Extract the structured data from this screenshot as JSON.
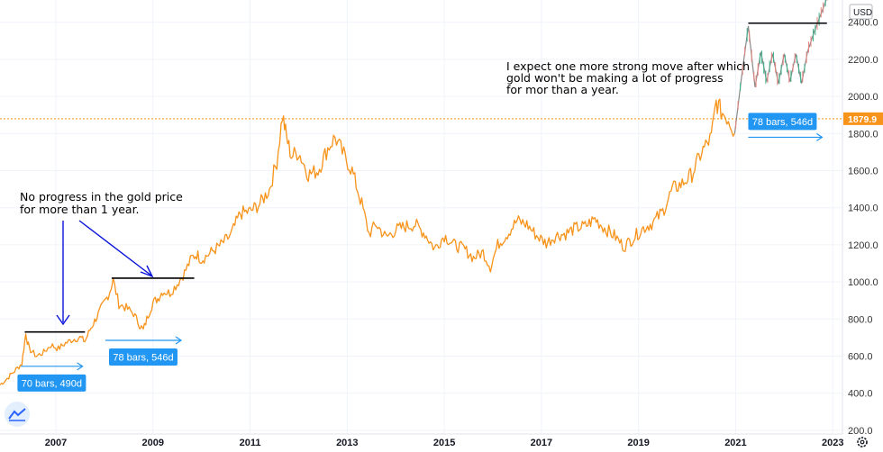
{
  "chart_data": {
    "type": "line",
    "title": "",
    "currency": "USD",
    "current_price_label": "1879.9",
    "current_price": 1879.9,
    "ylim": [
      180,
      2520
    ],
    "xlim": [
      2005.85,
      2023.2
    ],
    "y_ticks": [
      {
        "value": 2400,
        "label": "2400.0"
      },
      {
        "value": 2200,
        "label": "2200.0"
      },
      {
        "value": 2000,
        "label": "2000.0"
      },
      {
        "value": 1800,
        "label": "1800.0"
      },
      {
        "value": 1600,
        "label": "1600.0"
      },
      {
        "value": 1400,
        "label": "1400.0"
      },
      {
        "value": 1200,
        "label": "1200.0"
      },
      {
        "value": 1000,
        "label": "1000.0"
      },
      {
        "value": 800,
        "label": "800.0"
      },
      {
        "value": 600,
        "label": "600.0"
      },
      {
        "value": 400,
        "label": "400.0"
      },
      {
        "value": 200,
        "label": "200.0"
      }
    ],
    "x_ticks": [
      {
        "value": 2007,
        "label": "2007"
      },
      {
        "value": 2009,
        "label": "2009"
      },
      {
        "value": 2011,
        "label": "2011"
      },
      {
        "value": 2013,
        "label": "2013"
      },
      {
        "value": 2015,
        "label": "2015"
      },
      {
        "value": 2017,
        "label": "2017"
      },
      {
        "value": 2019,
        "label": "2019"
      },
      {
        "value": 2021,
        "label": "2021"
      },
      {
        "value": 2023,
        "label": "2023"
      }
    ],
    "series": [
      {
        "color": "#f7931a",
        "x": [
          2005.85,
          2006.0,
          2006.15,
          2006.3,
          2006.38,
          2006.45,
          2006.6,
          2006.75,
          2006.9,
          2007.05,
          2007.2,
          2007.35,
          2007.5,
          2007.6,
          2007.7,
          2007.8,
          2007.9,
          2008.0,
          2008.1,
          2008.18,
          2008.3,
          2008.45,
          2008.6,
          2008.72,
          2008.8,
          2008.9,
          2009.0,
          2009.1,
          2009.2,
          2009.35,
          2009.5,
          2009.65,
          2009.8,
          2009.9,
          2010.0,
          2010.2,
          2010.4,
          2010.6,
          2010.8,
          2011.0,
          2011.2,
          2011.4,
          2011.55,
          2011.67,
          2011.75,
          2011.85,
          2012.0,
          2012.2,
          2012.4,
          2012.6,
          2012.75,
          2012.9,
          2013.1,
          2013.3,
          2013.45,
          2013.6,
          2013.8,
          2014.0,
          2014.2,
          2014.4,
          2014.6,
          2014.8,
          2015.0,
          2015.2,
          2015.4,
          2015.6,
          2015.8,
          2015.95,
          2016.1,
          2016.3,
          2016.5,
          2016.7,
          2016.9,
          2017.1,
          2017.3,
          2017.5,
          2017.7,
          2017.9,
          2018.1,
          2018.3,
          2018.5,
          2018.7,
          2018.9,
          2019.1,
          2019.3,
          2019.5,
          2019.7,
          2019.9,
          2020.1,
          2020.3,
          2020.5,
          2020.6,
          2020.7,
          2020.85,
          2020.98
        ],
        "values": [
          445,
          480,
          520,
          560,
          720,
          640,
          600,
          620,
          660,
          640,
          670,
          690,
          700,
          680,
          740,
          790,
          840,
          890,
          940,
          1010,
          880,
          860,
          830,
          770,
          740,
          820,
          890,
          910,
          950,
          940,
          990,
          1050,
          1130,
          1150,
          1120,
          1160,
          1200,
          1250,
          1370,
          1380,
          1420,
          1500,
          1650,
          1900,
          1780,
          1680,
          1700,
          1580,
          1600,
          1720,
          1780,
          1700,
          1600,
          1420,
          1260,
          1310,
          1240,
          1280,
          1300,
          1310,
          1260,
          1180,
          1250,
          1200,
          1180,
          1130,
          1160,
          1080,
          1200,
          1260,
          1330,
          1310,
          1250,
          1210,
          1250,
          1260,
          1290,
          1300,
          1340,
          1290,
          1250,
          1190,
          1240,
          1290,
          1320,
          1380,
          1500,
          1530,
          1580,
          1700,
          1780,
          1970,
          1920,
          1880,
          1800
        ]
      },
      {
        "name": "",
        "color": "#8a8a8a",
        "x": [
          2020.98,
          2021.12,
          2021.26,
          2021.4,
          2021.52,
          2021.64,
          2021.76,
          2021.88,
          2022.0,
          2022.12,
          2022.24,
          2022.36,
          2022.48,
          2022.62,
          2022.78,
          2022.92
        ],
        "values": [
          1800,
          2100,
          2380,
          2050,
          2240,
          2080,
          2230,
          2070,
          2230,
          2080,
          2230,
          2070,
          2240,
          2350,
          2460,
          2560
        ]
      }
    ],
    "annotations": [
      {
        "text": "I expect one more strong move after which",
        "line": 1
      },
      {
        "text": "gold won't be making a lot of progress",
        "line": 2
      },
      {
        "text": "for mor than a year.",
        "line": 3
      },
      {
        "text": "No progress in the gold price",
        "line": 1
      },
      {
        "text": "for more than 1 year.",
        "line": 2
      }
    ],
    "range_badges": [
      {
        "label": "70 bars, 490d",
        "x_start": 2006.28,
        "x_end": 2007.55,
        "y": 545
      },
      {
        "label": "78 bars, 546d",
        "x_start": 2008.02,
        "x_end": 2009.58,
        "y": 685
      },
      {
        "label": "78 bars, 546d",
        "x_start": 2021.26,
        "x_end": 2022.78,
        "y": 1780
      }
    ],
    "resistance_lines": [
      {
        "x_start": 2006.36,
        "x_end": 2007.6,
        "y": 730
      },
      {
        "x_start": 2008.15,
        "x_end": 2009.85,
        "y": 1020
      },
      {
        "x_start": 2021.26,
        "x_end": 2022.88,
        "y": 2395
      }
    ]
  }
}
